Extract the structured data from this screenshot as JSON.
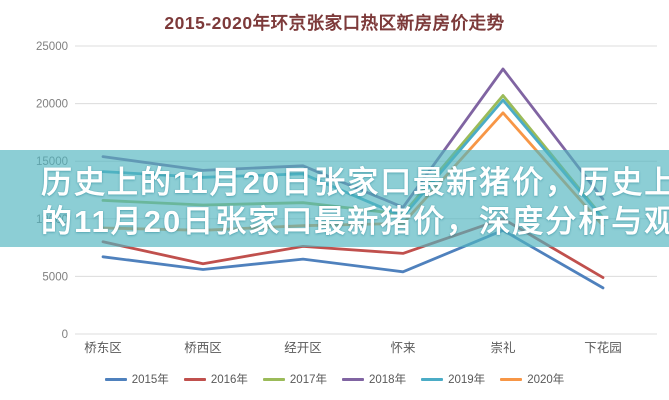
{
  "overlay": {
    "line1": "历史上的11月20日张家口最新猪价，历史上",
    "line2": "的11月20日张家口最新猪价，深度分析与观",
    "band_color": "rgba(80,180,192,0.66)"
  },
  "colors": {
    "title": "#7d3a3a",
    "grid": "#dcdcdc",
    "y_tick_label": "#7f7f7f",
    "x_tick_label": "#595959"
  },
  "chart_data": {
    "type": "line",
    "title": "2015-2020年环京张家口热区新房房价走势",
    "xlabel": "",
    "ylabel": "",
    "ylim": [
      0,
      25000
    ],
    "yticks": [
      0,
      5000,
      10000,
      15000,
      20000,
      25000
    ],
    "grid": true,
    "legend_position": "bottom",
    "categories": [
      "桥东区",
      "桥西区",
      "经开区",
      "怀来",
      "崇礼",
      "下花园"
    ],
    "series": [
      {
        "name": "2015年",
        "color": "#4F81BD",
        "values": [
          6700,
          5600,
          6500,
          5400,
          9000,
          4000
        ]
      },
      {
        "name": "2016年",
        "color": "#C0504D",
        "values": [
          8000,
          6100,
          7600,
          7000,
          10000,
          4900
        ]
      },
      {
        "name": "2017年",
        "color": "#9BBB59",
        "values": [
          11600,
          11200,
          11400,
          10400,
          20700,
          10100
        ]
      },
      {
        "name": "2018年",
        "color": "#8064A2",
        "values": [
          15400,
          14200,
          14600,
          11000,
          23000,
          11700
        ]
      },
      {
        "name": "2019年",
        "color": "#4BACC6",
        "values": [
          14100,
          13600,
          13900,
          10200,
          20300,
          10000
        ]
      },
      {
        "name": "2020年",
        "color": "#F79646",
        "values": [
          9200,
          9000,
          9400,
          9600,
          19200,
          9400
        ]
      }
    ]
  }
}
